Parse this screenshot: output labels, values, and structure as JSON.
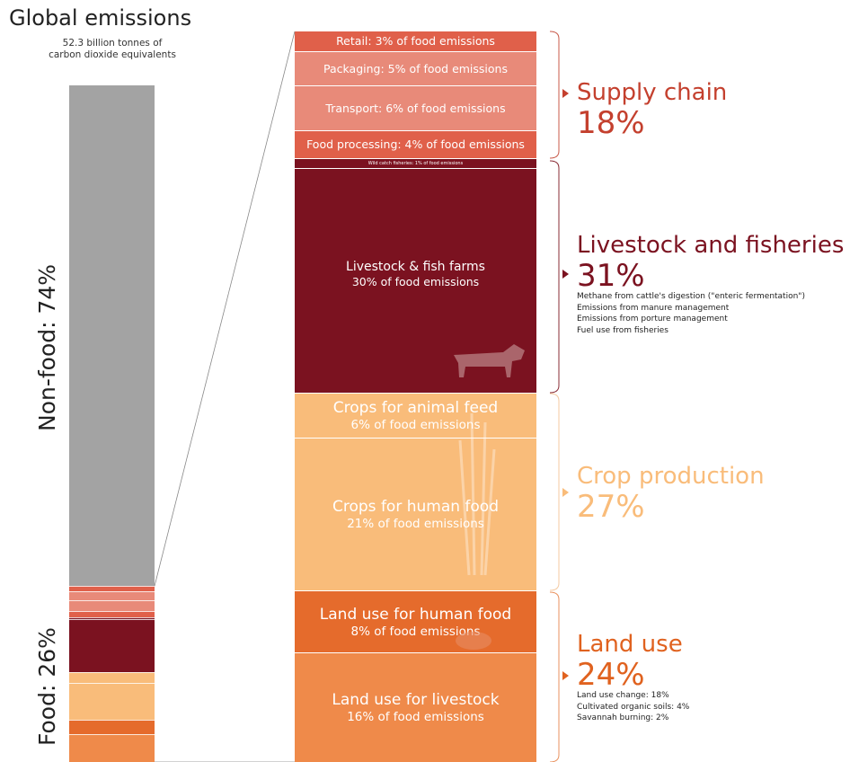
{
  "header": {
    "title": "Global emissions",
    "subtitle_line1": "52.3 billion tonnes of",
    "subtitle_line2": "carbon dioxide equivalents"
  },
  "left_labels": {
    "nonfood": "Non-food: 74%",
    "food": "Food: 26%"
  },
  "colors": {
    "nonfood": "#a3a3a3",
    "supply": "#e0604a",
    "supply_light": "#e88a79",
    "livestock": "#7b1220",
    "crops": "#f9bc7a",
    "landuse": "#ef8a4a",
    "landuse_dark": "#e56b2c"
  },
  "chart_data": {
    "type": "bar",
    "title": "Global emissions",
    "subtitle": "52.3 billion tonnes of carbon dioxide equivalents",
    "total": "52.3 billion tonnes of carbon dioxide equivalents",
    "global_split": [
      {
        "name": "Non-food",
        "label": "Non-food: 74%",
        "value": 74
      },
      {
        "name": "Food",
        "label": "Food: 26%",
        "value": 26
      }
    ],
    "food_segments": [
      {
        "key": "retail",
        "label": "Retail: 3% of food emissions",
        "value": 3,
        "group": "supply",
        "color": "#e0604a"
      },
      {
        "key": "packaging",
        "label": "Packaging: 5% of food emissions",
        "value": 5,
        "group": "supply",
        "color": "#e88a79"
      },
      {
        "key": "transport",
        "label": "Transport: 6% of food emissions",
        "value": 6,
        "group": "supply",
        "color": "#e88a79"
      },
      {
        "key": "processing",
        "label": "Food processing: 4% of food emissions",
        "value": 4,
        "group": "supply",
        "color": "#e0604a"
      },
      {
        "key": "fisheries",
        "label": "Wild catch fisheries: 1% of food emissions",
        "value": 1,
        "group": "livestock",
        "color": "#7b1220"
      },
      {
        "key": "livestock",
        "label": "Livestock & fish farms",
        "sub": "30% of food emissions",
        "value": 30,
        "group": "livestock",
        "color": "#7b1220"
      },
      {
        "key": "feed",
        "label": "Crops for animal feed",
        "sub": "6% of food emissions",
        "value": 6,
        "group": "crops",
        "color": "#f9bc7a"
      },
      {
        "key": "humanfood",
        "label": "Crops for human food",
        "sub": "21% of food emissions",
        "value": 21,
        "group": "crops",
        "color": "#f9bc7a"
      },
      {
        "key": "lu_human",
        "label": "Land use for human food",
        "sub": "8% of food emissions",
        "value": 8,
        "group": "landuse",
        "color": "#e56b2c"
      },
      {
        "key": "lu_livestock",
        "label": "Land use for livestock",
        "sub": "16% of food emissions",
        "value": 16,
        "group": "landuse",
        "color": "#ef8a4a"
      }
    ],
    "categories": [
      {
        "key": "supply",
        "name": "Supply chain",
        "percent": "18%",
        "value": 18,
        "color": "#c4402e",
        "notes": []
      },
      {
        "key": "livestock",
        "name": "Livestock and fisheries",
        "percent": "31%",
        "value": 31,
        "color": "#7b1220",
        "notes": [
          "Methane from cattle's digestion (\"enteric fermentation\")",
          "Emissions from manure management",
          "Emissions from porture management",
          "Fuel use from fisheries"
        ]
      },
      {
        "key": "crops",
        "name": "Crop production",
        "percent": "27%",
        "value": 27,
        "color": "#f9bc7a",
        "notes": []
      },
      {
        "key": "landuse",
        "name": "Land use",
        "percent": "24%",
        "value": 24,
        "color": "#e0621f",
        "notes": [
          "Land use change: 18%",
          "Cultivated organic soils: 4%",
          "Savannah burning: 2%"
        ]
      }
    ]
  }
}
